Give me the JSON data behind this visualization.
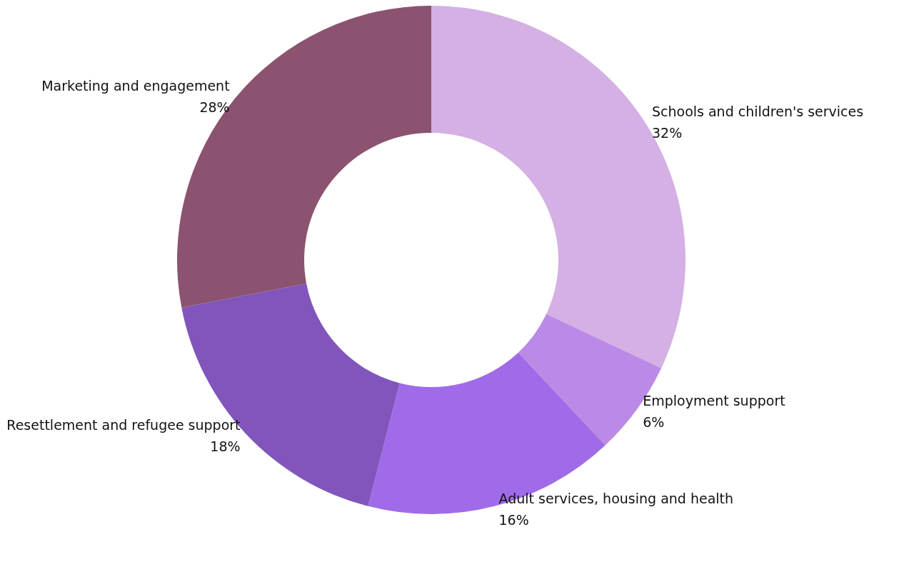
{
  "chart_data": {
    "type": "donut",
    "categories": [
      "Schools and children's services",
      "Employment support",
      "Adult services, housing and health",
      "Resettlement and refugee support",
      "Marketing and engagement"
    ],
    "values": [
      32,
      6,
      16,
      18,
      28
    ],
    "value_labels": [
      "32%",
      "6%",
      "16%",
      "18%",
      "28%"
    ],
    "colors": [
      "#d5b0e4",
      "#bb8ae6",
      "#a06be8",
      "#8155bb",
      "#8b5370"
    ],
    "legend": false
  }
}
